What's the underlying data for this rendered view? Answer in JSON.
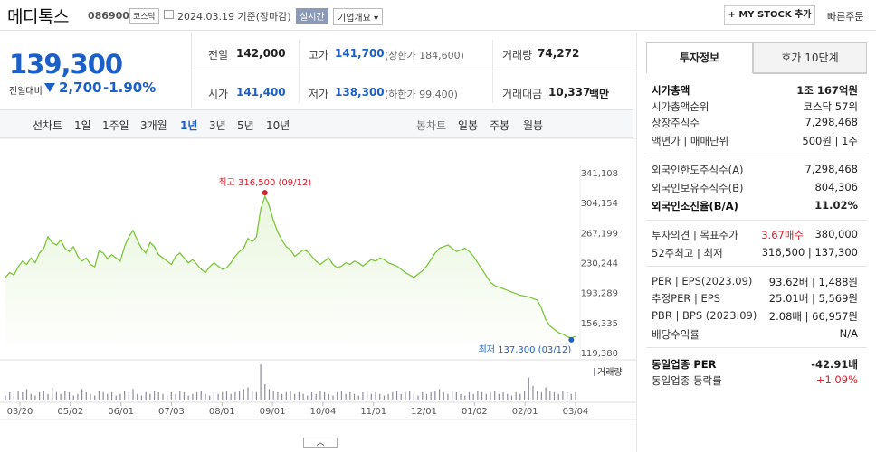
{
  "header": {
    "stock_name": "메디톡스",
    "stock_code": "086900",
    "market": "코스닥",
    "date_text": "2024.03.19  기준(장마감)",
    "live_label": "실시간",
    "company_info_label": "기업개요 ▾",
    "mystock_label": "+ MY STOCK 추가",
    "quick_order_label": "빠른주문"
  },
  "quote": {
    "price": "139,300",
    "prev_label": "전일대비",
    "change": "2,700",
    "change_pct": "-1.90%",
    "prev_close_label": "전일",
    "prev_close": "142,000",
    "high_label": "고가",
    "high": "141,700",
    "upper_limit": "(상한가 184,600)",
    "volume_label": "거래량",
    "volume": "74,272",
    "open_label": "시가",
    "open": "141,400",
    "low_label": "저가",
    "low": "138,300",
    "lower_limit": "(하한가 99,400)",
    "amount_label": "거래대금",
    "amount": "10,337",
    "amount_unit": "백만"
  },
  "period_bar": {
    "line_chart_label": "선차트",
    "line_periods": [
      "1일",
      "1주일",
      "3개월",
      "1년",
      "3년",
      "5년",
      "10년"
    ],
    "selected": "1년",
    "candle_chart_label": "봉차트",
    "candle_periods": [
      "일봉",
      "주봉",
      "월봉"
    ]
  },
  "right_panel": {
    "tabs": [
      "투자정보",
      "호가 10단계"
    ],
    "rows": [
      {
        "k": "시가총액",
        "v": "1조 167억원",
        "bold": true
      },
      {
        "k": "시가총액순위",
        "v": "코스닥 57위"
      },
      {
        "k": "상장주식수",
        "v": "7,298,468"
      },
      {
        "k": "액면가 | 매매단위",
        "v": "500원 | 1주"
      },
      {
        "k": "외국인한도주식수(A)",
        "v": "7,298,468"
      },
      {
        "k": "외국인보유주식수(B)",
        "v": "804,306"
      },
      {
        "k": "외국인소진율(B/A)",
        "v": "11.02%",
        "bold": true
      },
      {
        "k": "투자의견 | 목표주가",
        "v1": "3.67매수",
        "v": "380,000"
      },
      {
        "k": "52주최고 | 최저",
        "v": "316,500 | 137,300"
      },
      {
        "k": "PER | EPS(2023.09)",
        "v": "93.62배 | 1,488원"
      },
      {
        "k": "추정PER | EPS",
        "v": "25.01배 | 5,569원"
      },
      {
        "k": "PBR | BPS (2023.09)",
        "v": "2.08배 | 66,957원"
      },
      {
        "k": "배당수익률",
        "v": "N/A"
      },
      {
        "k": "동일업종 PER",
        "v": "-42.91배",
        "bold": true
      },
      {
        "k": "동일업종 등락률",
        "v": "+1.09%"
      }
    ]
  },
  "colors": {
    "price_blue": "#1b5fc7",
    "line_green": "#7cc63a",
    "fill_green": "#e6f5d8",
    "high_red": "#d2202e",
    "low_blue": "#1b5fc7"
  },
  "chart_data": {
    "type": "area",
    "y_ticks": [
      "341,108",
      "304,154",
      "267,199",
      "230,244",
      "193,289",
      "156,335",
      "119,380"
    ],
    "ylim": [
      119380,
      341108
    ],
    "x_ticks": [
      "03/20",
      "05/02",
      "06/01",
      "07/03",
      "08/01",
      "09/01",
      "10/04",
      "11/01",
      "12/01",
      "01/02",
      "02/01",
      "03/04"
    ],
    "high_annotation": "최고 316,500 (09/12)",
    "low_annotation": "최저 137,300 (03/12)",
    "volume_label": "거래량",
    "grid": false,
    "series": [
      {
        "values": [
          212000,
          218000,
          215000,
          225000,
          232000,
          228000,
          236000,
          230000,
          242000,
          248000,
          262000,
          255000,
          252000,
          258000,
          248000,
          244000,
          250000,
          238000,
          232000,
          236000,
          228000,
          225000,
          245000,
          242000,
          235000,
          240000,
          236000,
          232000,
          250000,
          262000,
          270000,
          258000,
          248000,
          242000,
          255000,
          250000,
          240000,
          236000,
          232000,
          228000,
          238000,
          242000,
          236000,
          230000,
          234000,
          228000,
          222000,
          218000,
          225000,
          230000,
          226000,
          222000,
          224000,
          230000,
          238000,
          244000,
          248000,
          260000,
          256000,
          262000,
          296000,
          312000,
          300000,
          282000,
          268000,
          258000,
          250000,
          246000,
          238000,
          242000,
          246000,
          244000,
          238000,
          232000,
          228000,
          232000,
          236000,
          228000,
          224000,
          226000,
          230000,
          228000,
          232000,
          230000,
          226000,
          230000,
          234000,
          232000,
          236000,
          234000,
          230000,
          228000,
          226000,
          222000,
          218000,
          215000,
          212000,
          216000,
          220000,
          226000,
          234000,
          242000,
          248000,
          250000,
          252000,
          248000,
          244000,
          246000,
          248000,
          244000,
          238000,
          230000,
          222000,
          214000,
          206000,
          202000,
          200000,
          198000,
          196000,
          194000,
          192000,
          190000,
          189000,
          188000,
          186000,
          184000,
          174000,
          160000,
          152000,
          148000,
          144000,
          142000,
          139000,
          137300,
          139300
        ]
      }
    ],
    "volume": [
      3,
      5,
      4,
      6,
      5,
      7,
      4,
      3,
      5,
      6,
      4,
      8,
      5,
      4,
      6,
      5,
      3,
      4,
      7,
      5,
      4,
      3,
      6,
      5,
      4,
      5,
      3,
      4,
      6,
      5,
      7,
      4,
      3,
      5,
      4,
      6,
      5,
      4,
      3,
      5,
      4,
      6,
      5,
      3,
      4,
      5,
      6,
      4,
      3,
      5,
      4,
      5,
      6,
      4,
      5,
      6,
      7,
      8,
      6,
      5,
      22,
      10,
      7,
      6,
      5,
      4,
      5,
      6,
      4,
      5,
      4,
      3,
      5,
      4,
      6,
      5,
      4,
      3,
      5,
      6,
      4,
      5,
      4,
      3,
      5,
      6,
      4,
      5,
      4,
      3,
      4,
      5,
      6,
      4,
      5,
      6,
      4,
      3,
      5,
      4,
      5,
      6,
      7,
      5,
      4,
      6,
      5,
      4,
      3,
      5,
      4,
      6,
      5,
      4,
      5,
      6,
      4,
      5,
      4,
      3,
      5,
      4,
      6,
      14,
      9,
      6,
      5,
      8,
      6,
      5,
      4,
      6,
      5,
      4,
      5
    ]
  }
}
